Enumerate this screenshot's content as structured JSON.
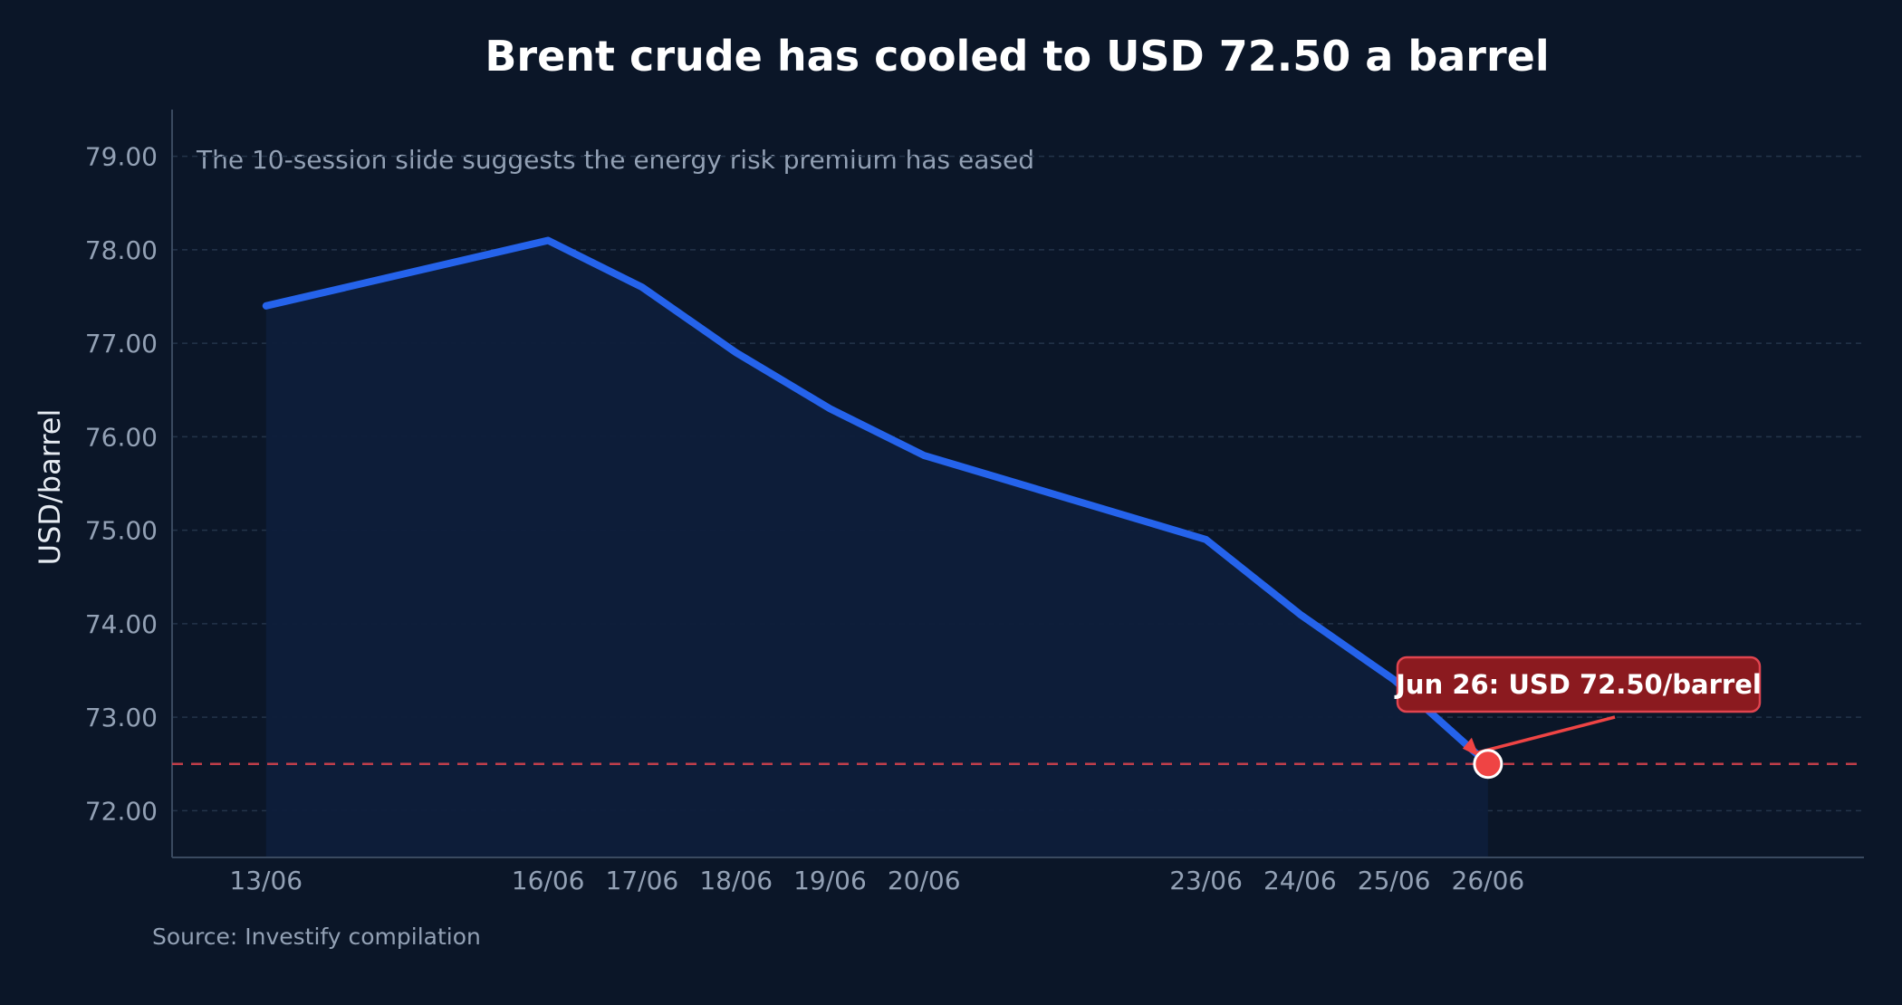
{
  "chart_data": {
    "type": "line",
    "title": "Brent crude has cooled to USD 72.50 a barrel",
    "subtitle": "The 10-session slide suggests the energy risk premium has eased",
    "ylabel": "USD/barrel",
    "xlabel": "",
    "source": "Source: Investify compilation",
    "x": [
      "2024-06-13",
      "2024-06-16",
      "2024-06-17",
      "2024-06-18",
      "2024-06-19",
      "2024-06-20",
      "2024-06-23",
      "2024-06-24",
      "2024-06-25",
      "2024-06-26"
    ],
    "x_tick_labels": [
      "13/06",
      "16/06",
      "17/06",
      "18/06",
      "19/06",
      "20/06",
      "23/06",
      "24/06",
      "25/06",
      "26/06"
    ],
    "values": [
      77.4,
      78.1,
      77.6,
      76.9,
      76.3,
      75.8,
      74.9,
      74.1,
      73.4,
      72.5
    ],
    "ylim": [
      71.5,
      79.5
    ],
    "xlim": [
      "2024-06-12",
      "2024-06-30"
    ],
    "yticks": [
      72,
      73,
      74,
      75,
      76,
      77,
      78,
      79
    ],
    "ytick_labels": [
      "72.00",
      "73.00",
      "74.00",
      "75.00",
      "76.00",
      "77.00",
      "78.00",
      "79.00"
    ],
    "grid": true,
    "reference_line": {
      "value": 72.5,
      "style": "dashed",
      "color": "#e0444f"
    },
    "annotation": {
      "label": "Jun 26: USD 72.50/barrel",
      "x": "2024-06-26",
      "y": 72.5
    },
    "colors": {
      "background": "#0b1628",
      "line": "#2563eb",
      "area": "#0e1d3a",
      "grid": "#24344a",
      "axis": "#3a4a60",
      "marker": "#ef4444",
      "callout_fill": "#8b1a1f",
      "callout_border": "#e0444f"
    }
  }
}
